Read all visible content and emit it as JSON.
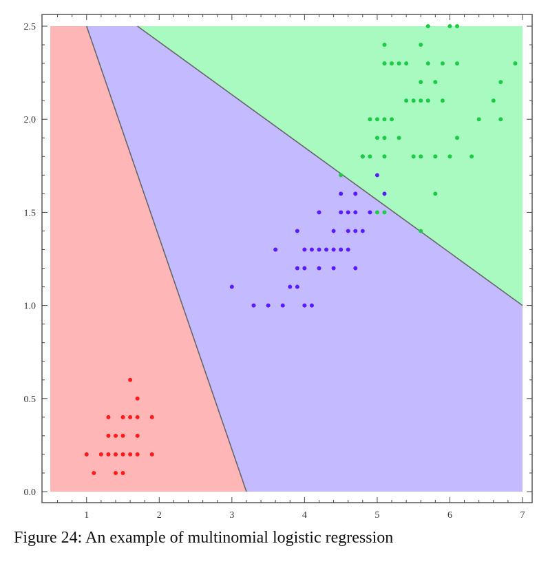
{
  "caption": "Figure 24: An example of multinomial logistic regression",
  "chart_data": {
    "type": "scatter",
    "title": "",
    "xlabel": "",
    "ylabel": "",
    "xlim": [
      0.5,
      7
    ],
    "ylim": [
      0,
      2.5
    ],
    "x_ticks": [
      "1",
      "2",
      "3",
      "4",
      "5",
      "6",
      "7"
    ],
    "y_ticks": [
      "0.0",
      "0.5",
      "1.0",
      "1.5",
      "2.0",
      "2.5"
    ],
    "grid": false,
    "legend": "none",
    "regions": [
      {
        "color": "#ffb6b6",
        "polygon": [
          [
            0.5,
            0
          ],
          [
            0.5,
            2.5
          ],
          [
            1.0,
            2.5
          ],
          [
            3.2,
            0
          ]
        ]
      },
      {
        "color": "#c3baff",
        "polygon": [
          [
            1.0,
            2.5
          ],
          [
            1.7,
            2.5
          ],
          [
            7.0,
            1.0
          ],
          [
            7.0,
            0
          ],
          [
            3.2,
            0
          ]
        ]
      },
      {
        "color": "#a8fac0",
        "polygon": [
          [
            1.7,
            2.5
          ],
          [
            7.0,
            2.5
          ],
          [
            7.0,
            1.0
          ]
        ]
      }
    ],
    "boundaries": [
      {
        "from": [
          1.0,
          2.5
        ],
        "to": [
          3.2,
          0
        ]
      },
      {
        "from": [
          1.7,
          2.5
        ],
        "to": [
          7.0,
          1.0
        ]
      }
    ],
    "series": [
      {
        "color": "#ff1a1a",
        "points": [
          [
            1.0,
            0.2
          ],
          [
            1.1,
            0.1
          ],
          [
            1.2,
            0.2
          ],
          [
            1.3,
            0.2
          ],
          [
            1.3,
            0.3
          ],
          [
            1.3,
            0.4
          ],
          [
            1.4,
            0.1
          ],
          [
            1.4,
            0.2
          ],
          [
            1.4,
            0.3
          ],
          [
            1.5,
            0.1
          ],
          [
            1.5,
            0.2
          ],
          [
            1.5,
            0.3
          ],
          [
            1.5,
            0.4
          ],
          [
            1.6,
            0.2
          ],
          [
            1.6,
            0.4
          ],
          [
            1.6,
            0.6
          ],
          [
            1.7,
            0.2
          ],
          [
            1.7,
            0.3
          ],
          [
            1.7,
            0.4
          ],
          [
            1.7,
            0.5
          ],
          [
            1.9,
            0.2
          ],
          [
            1.9,
            0.4
          ]
        ]
      },
      {
        "color": "#5a1aff",
        "points": [
          [
            3.0,
            1.1
          ],
          [
            3.3,
            1.0
          ],
          [
            3.5,
            1.0
          ],
          [
            3.6,
            1.3
          ],
          [
            3.7,
            1.0
          ],
          [
            3.8,
            1.1
          ],
          [
            3.9,
            1.1
          ],
          [
            3.9,
            1.2
          ],
          [
            3.9,
            1.4
          ],
          [
            4.0,
            1.0
          ],
          [
            4.0,
            1.2
          ],
          [
            4.0,
            1.3
          ],
          [
            4.1,
            1.0
          ],
          [
            4.1,
            1.3
          ],
          [
            4.2,
            1.2
          ],
          [
            4.2,
            1.3
          ],
          [
            4.2,
            1.5
          ],
          [
            4.3,
            1.3
          ],
          [
            4.4,
            1.2
          ],
          [
            4.4,
            1.3
          ],
          [
            4.4,
            1.4
          ],
          [
            4.5,
            1.3
          ],
          [
            4.5,
            1.5
          ],
          [
            4.5,
            1.6
          ],
          [
            4.6,
            1.3
          ],
          [
            4.6,
            1.4
          ],
          [
            4.6,
            1.5
          ],
          [
            4.7,
            1.2
          ],
          [
            4.7,
            1.4
          ],
          [
            4.7,
            1.5
          ],
          [
            4.7,
            1.6
          ],
          [
            4.8,
            1.4
          ],
          [
            4.8,
            1.8
          ],
          [
            4.9,
            1.5
          ],
          [
            5.0,
            1.7
          ],
          [
            5.1,
            1.6
          ]
        ]
      },
      {
        "color": "#1acc44",
        "points": [
          [
            4.5,
            1.7
          ],
          [
            4.8,
            1.8
          ],
          [
            4.9,
            1.8
          ],
          [
            4.9,
            2.0
          ],
          [
            5.0,
            1.5
          ],
          [
            5.0,
            1.9
          ],
          [
            5.0,
            2.0
          ],
          [
            5.1,
            1.5
          ],
          [
            5.1,
            1.8
          ],
          [
            5.1,
            1.9
          ],
          [
            5.1,
            2.0
          ],
          [
            5.1,
            2.3
          ],
          [
            5.1,
            2.4
          ],
          [
            5.2,
            2.0
          ],
          [
            5.2,
            2.3
          ],
          [
            5.3,
            1.9
          ],
          [
            5.3,
            2.3
          ],
          [
            5.4,
            2.1
          ],
          [
            5.4,
            2.3
          ],
          [
            5.5,
            1.8
          ],
          [
            5.5,
            2.1
          ],
          [
            5.6,
            1.4
          ],
          [
            5.6,
            1.8
          ],
          [
            5.6,
            2.1
          ],
          [
            5.6,
            2.2
          ],
          [
            5.6,
            2.4
          ],
          [
            5.7,
            2.1
          ],
          [
            5.7,
            2.3
          ],
          [
            5.7,
            2.5
          ],
          [
            5.8,
            1.6
          ],
          [
            5.8,
            1.8
          ],
          [
            5.8,
            2.2
          ],
          [
            5.9,
            2.1
          ],
          [
            5.9,
            2.3
          ],
          [
            6.0,
            1.8
          ],
          [
            6.0,
            2.5
          ],
          [
            6.1,
            1.9
          ],
          [
            6.1,
            2.3
          ],
          [
            6.1,
            2.5
          ],
          [
            6.3,
            1.8
          ],
          [
            6.4,
            2.0
          ],
          [
            6.6,
            2.1
          ],
          [
            6.7,
            2.0
          ],
          [
            6.7,
            2.2
          ],
          [
            6.9,
            2.3
          ]
        ]
      }
    ]
  }
}
